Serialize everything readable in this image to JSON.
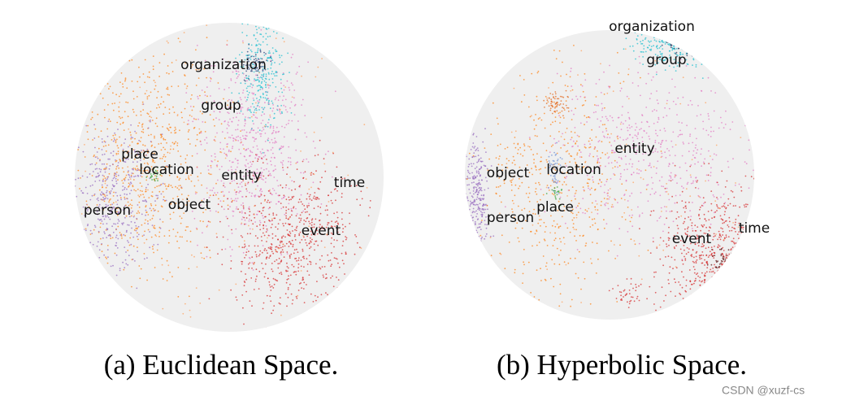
{
  "panels": [
    {
      "caption": "(a) Euclidean Space.",
      "labels": [
        "organization",
        "group",
        "place",
        "location",
        "entity",
        "time",
        "object",
        "person",
        "event"
      ]
    },
    {
      "caption": "(b) Hyperbolic Space.",
      "labels": [
        "organization",
        "group",
        "entity",
        "object",
        "location",
        "time",
        "person",
        "place",
        "event"
      ]
    }
  ],
  "watermark": "CSDN @xuzf-cs"
}
